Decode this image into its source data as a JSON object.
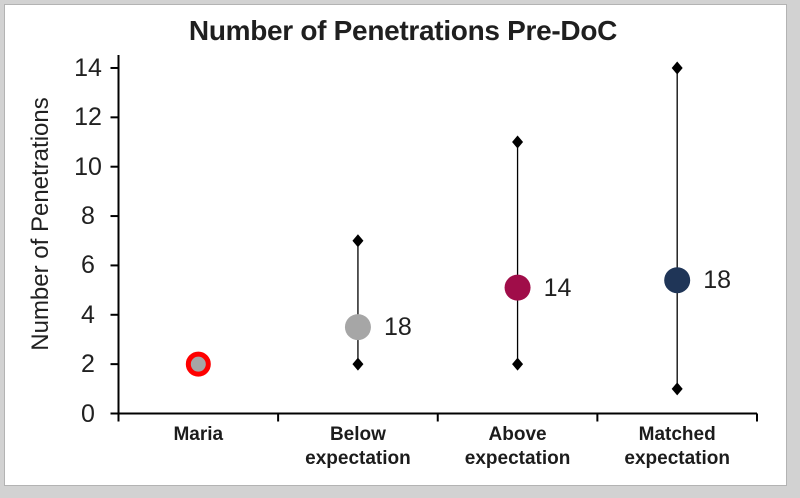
{
  "frame": {
    "background_color": "#d2d2d2",
    "card_color": "#ffffff",
    "card_border_color": "#b3b3b3"
  },
  "chart_data": {
    "type": "scatter",
    "title": "Number of Penetrations Pre-DoC",
    "xlabel": "",
    "ylabel": "Number of Penetrations",
    "ylim": [
      0,
      14
    ],
    "yticks": [
      0,
      2,
      4,
      6,
      8,
      10,
      12,
      14
    ],
    "grid": false,
    "legend": false,
    "categories": [
      "Maria",
      "Below expectation",
      "Above expectation",
      "Matched expectation"
    ],
    "points": [
      {
        "category": "Maria",
        "value": 2,
        "n_label": "",
        "fill": "#a6a6a6",
        "ring": "#fe0000",
        "whisker_low": null,
        "whisker_high": null
      },
      {
        "category": "Below expectation",
        "value": 3.5,
        "n_label": "18",
        "fill": "#a6a6a6",
        "ring": null,
        "whisker_low": 2,
        "whisker_high": 7
      },
      {
        "category": "Above expectation",
        "value": 5.1,
        "n_label": "14",
        "fill": "#a00d49",
        "ring": null,
        "whisker_low": 2,
        "whisker_high": 11
      },
      {
        "category": "Matched expectation",
        "value": 5.4,
        "n_label": "18",
        "fill": "#1f3557",
        "ring": null,
        "whisker_low": 1,
        "whisker_high": 14
      }
    ],
    "colors": {
      "axis": "#000000",
      "whisker": "#000000",
      "diamond": "#000000",
      "text": "#212121",
      "title_text": "#1f1f1f"
    }
  }
}
